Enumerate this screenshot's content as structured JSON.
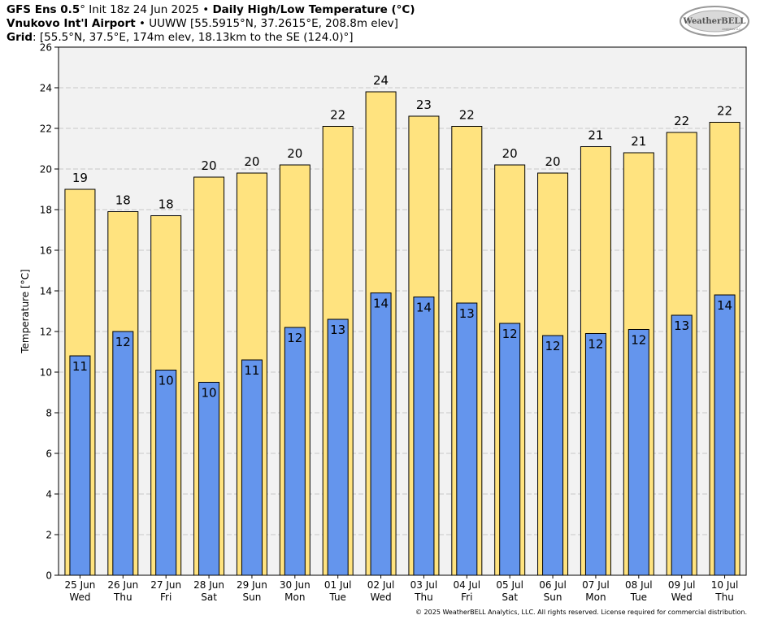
{
  "header": {
    "model": "GFS Ens 0.5",
    "deg": "°",
    "init": " Init 18z 24 Jun 2025",
    "bullet": " • ",
    "product": "Daily High/Low Temperature (°C)",
    "station_name": "Vnukovo Int'l Airport",
    "station_info": "UUWW [55.5915°N, 37.2615°E, 208.8m elev]",
    "grid_label": "Grid",
    "grid_info": ": [55.5°N, 37.5°E, 174m elev, 18.13km to the SE (124.0)°]"
  },
  "logo": {
    "text": "WeatherBELL",
    "subtext": "Analytics LLC"
  },
  "copyright": "© 2025 WeatherBELL Analytics, LLC. All rights reserved. License required for commercial distribution.",
  "colors": {
    "high": "#FFE37F",
    "low": "#6495ED",
    "plot_bg": "#F2F2F2",
    "grid": "#BBBBBB"
  },
  "chart_data": {
    "type": "bar",
    "ylabel": "Temperature [°C]",
    "ylim": [
      0,
      26
    ],
    "yticks": [
      0,
      2,
      4,
      6,
      8,
      10,
      12,
      14,
      16,
      18,
      20,
      22,
      24,
      26
    ],
    "grid": true,
    "categories": [
      [
        "25 Jun",
        "Wed"
      ],
      [
        "26 Jun",
        "Thu"
      ],
      [
        "27 Jun",
        "Fri"
      ],
      [
        "28 Jun",
        "Sat"
      ],
      [
        "29 Jun",
        "Sun"
      ],
      [
        "30 Jun",
        "Mon"
      ],
      [
        "01 Jul",
        "Tue"
      ],
      [
        "02 Jul",
        "Wed"
      ],
      [
        "03 Jul",
        "Thu"
      ],
      [
        "04 Jul",
        "Fri"
      ],
      [
        "05 Jul",
        "Sat"
      ],
      [
        "06 Jul",
        "Sun"
      ],
      [
        "07 Jul",
        "Mon"
      ],
      [
        "08 Jul",
        "Tue"
      ],
      [
        "09 Jul",
        "Wed"
      ],
      [
        "10 Jul",
        "Thu"
      ]
    ],
    "series": [
      {
        "key": "high",
        "values": [
          19.0,
          17.9,
          17.7,
          19.6,
          19.8,
          20.2,
          22.1,
          23.8,
          22.6,
          22.1,
          20.2,
          19.8,
          21.1,
          20.8,
          21.8,
          22.3
        ],
        "labels": [
          "19",
          "18",
          "18",
          "20",
          "20",
          "20",
          "22",
          "24",
          "23",
          "22",
          "20",
          "20",
          "21",
          "21",
          "22",
          "22"
        ]
      },
      {
        "key": "low",
        "values": [
          10.8,
          12.0,
          10.1,
          9.5,
          10.6,
          12.2,
          12.6,
          13.9,
          13.7,
          13.4,
          12.4,
          11.8,
          11.9,
          12.1,
          12.8,
          13.8
        ],
        "labels": [
          "11",
          "12",
          "10",
          "10",
          "11",
          "12",
          "13",
          "14",
          "14",
          "13",
          "12",
          "12",
          "12",
          "12",
          "13",
          "14"
        ]
      }
    ]
  }
}
